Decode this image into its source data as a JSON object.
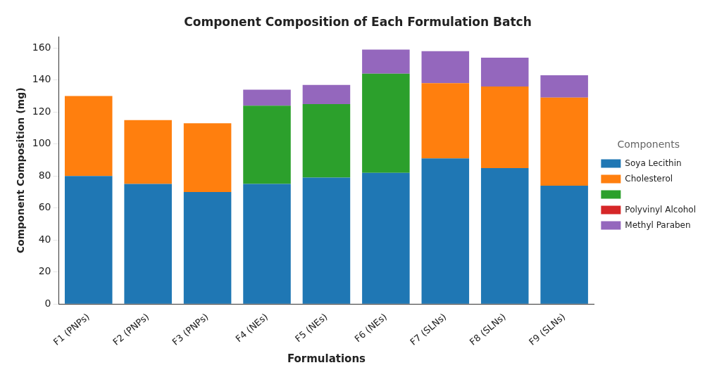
{
  "chart_data": {
    "type": "bar",
    "title": "Component Composition of Each Formulation Batch",
    "xlabel": "Formulations",
    "ylabel": "Component Composition (mg)",
    "legend_title": "Components",
    "categories": [
      "F1 (PNPs)",
      "F2 (PNPs)",
      "F3 (PNPs)",
      "F4 (NEs)",
      "F5 (NEs)",
      "F6 (NEs)",
      "F7 (SLNs)",
      "F8 (SLNs)",
      "F9 (SLNs)"
    ],
    "stacked": true,
    "series": [
      {
        "name": "Soya Lecithin",
        "color": "#1f77b4",
        "values": [
          80,
          75,
          70,
          75,
          79,
          82,
          91,
          85,
          74
        ]
      },
      {
        "name": "Cholesterol",
        "color": "#ff7f0e",
        "values": [
          50,
          40,
          43,
          0,
          0,
          0,
          47,
          51,
          55
        ]
      },
      {
        "color": "#2ca02c",
        "values": [
          0,
          0,
          0,
          49,
          46,
          62,
          0,
          0,
          0
        ]
      },
      {
        "name": "Polyvinyl Alcohol",
        "color": "#d62728",
        "values": [
          0,
          0,
          0,
          0,
          0,
          0,
          0,
          0,
          0
        ]
      },
      {
        "name": "Methyl Paraben",
        "color": "#9467bd",
        "values": [
          0,
          0,
          0,
          10,
          12,
          15,
          20,
          18,
          14
        ]
      }
    ],
    "ylim": [
      0,
      167
    ],
    "yticks": [
      0,
      20,
      40,
      60,
      80,
      100,
      120,
      140,
      160
    ],
    "grid": false,
    "legend": "right"
  }
}
